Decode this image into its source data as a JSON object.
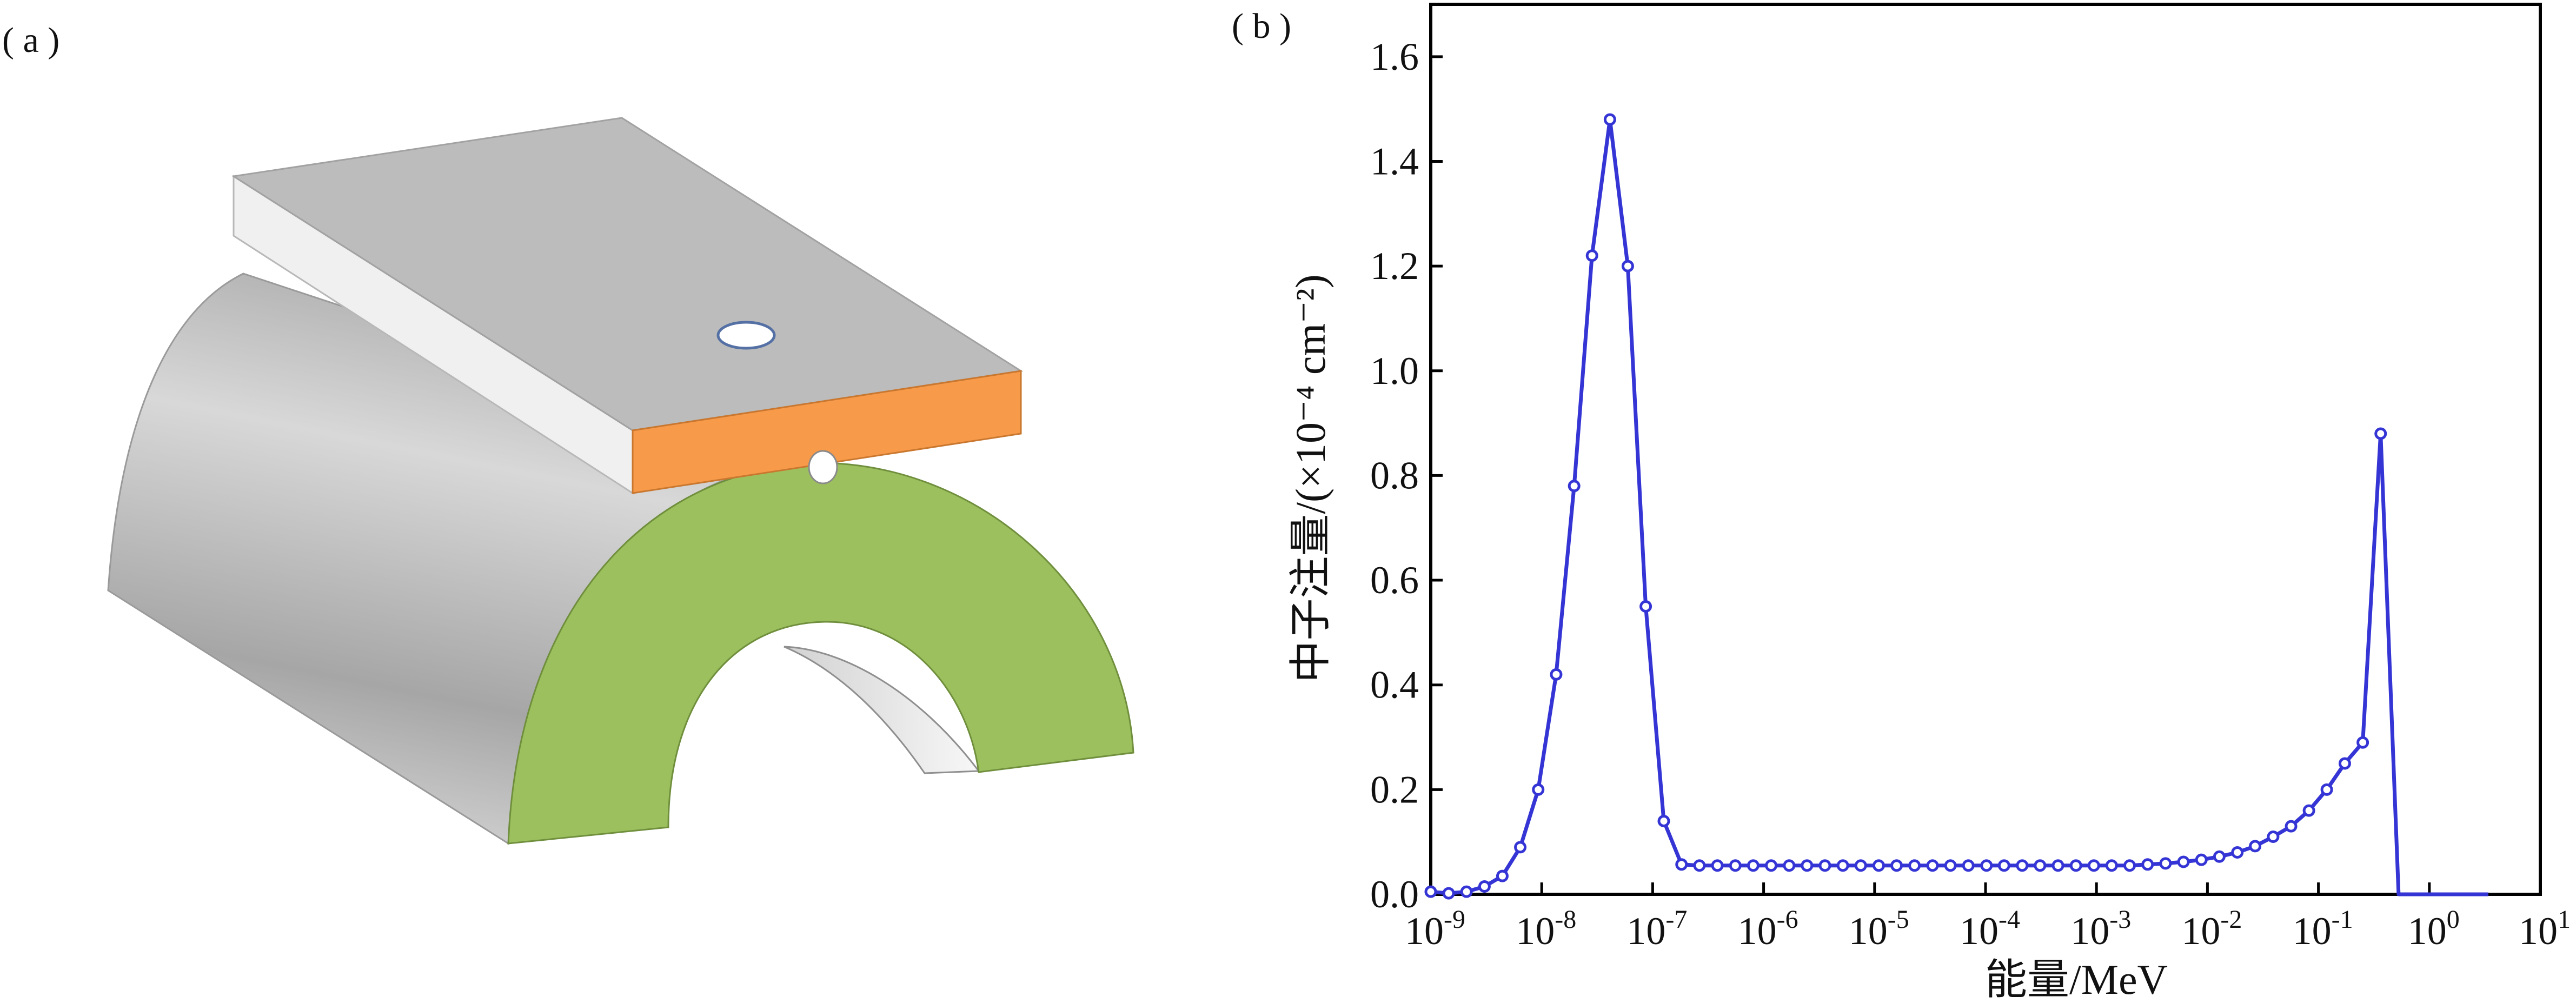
{
  "panel_a": {
    "label": "( a )",
    "colors": {
      "slab_top": "#bcbcbc",
      "slab_side": "#f0f0f0",
      "slab_front": "#f79a4a",
      "arch_face": "#9dc05e",
      "arch_body": "#b3b3b3",
      "hole": "#ffffff",
      "hole_stroke": "#5470a4"
    }
  },
  "panel_b": {
    "label": "( b )"
  },
  "chart_data": {
    "type": "line",
    "xlabel": "能量/MeV",
    "ylabel": "中子注量/(×10⁻⁴ cm⁻²)",
    "xscale": "log",
    "xlim": [
      1e-09,
      10
    ],
    "ylim": [
      0,
      1.7
    ],
    "x_ticks": [
      1e-09,
      1e-08,
      1e-07,
      1e-06,
      1e-05,
      0.0001,
      0.001,
      0.01,
      0.1,
      1,
      10
    ],
    "x_tick_labels": [
      {
        "base": "10",
        "exp": "-9"
      },
      {
        "base": "10",
        "exp": "-8"
      },
      {
        "base": "10",
        "exp": "-7"
      },
      {
        "base": "10",
        "exp": "-6"
      },
      {
        "base": "10",
        "exp": "-5"
      },
      {
        "base": "10",
        "exp": "-4"
      },
      {
        "base": "10",
        "exp": "-3"
      },
      {
        "base": "10",
        "exp": "-2"
      },
      {
        "base": "10",
        "exp": "-1"
      },
      {
        "base": "10",
        "exp": "0"
      },
      {
        "base": "10",
        "exp": "1"
      }
    ],
    "y_ticks": [
      0.0,
      0.2,
      0.4,
      0.6,
      0.8,
      1.0,
      1.2,
      1.4,
      1.6
    ],
    "y_tick_labels": [
      "0.0",
      "0.2",
      "0.4",
      "0.6",
      "0.8",
      "1.0",
      "1.2",
      "1.4",
      "1.6"
    ],
    "grid": false,
    "line_color": "#3535d6",
    "series": [
      {
        "x": [
          1e-09,
          1.45e-09,
          2.1e-09,
          3.05e-09,
          4.42e-09,
          6.41e-09,
          9.3e-09,
          1.35e-08,
          1.96e-08,
          2.84e-08,
          4.12e-08,
          5.97e-08,
          8.66e-08,
          1.26e-07,
          1.82e-07,
          2.64e-07,
          3.83e-07,
          5.56e-07,
          8.06e-07,
          1.17e-06,
          1.7e-06,
          2.46e-06,
          3.57e-06,
          5.18e-06,
          7.51e-06,
          1.09e-05,
          1.58e-05,
          2.29e-05,
          3.33e-05,
          4.83e-05,
          7e-05,
          0.000102,
          0.000147,
          0.000214,
          0.00031,
          0.00045,
          0.000653,
          0.000947,
          0.00137,
          0.00199,
          0.00289,
          0.00419,
          0.00608,
          0.00882,
          0.0128,
          0.0186,
          0.0269,
          0.0391,
          0.0567,
          0.0822,
          0.119,
          0.173,
          0.251,
          0.364,
          0.528,
          0.766,
          1.11,
          1.61,
          2.34,
          3.4
        ],
        "y": [
          0.005,
          0.002,
          0.005,
          0.015,
          0.035,
          0.09,
          0.2,
          0.42,
          0.78,
          1.22,
          1.48,
          1.2,
          0.55,
          0.14,
          0.057,
          0.055,
          0.055,
          0.055,
          0.055,
          0.055,
          0.055,
          0.055,
          0.055,
          0.055,
          0.055,
          0.055,
          0.055,
          0.055,
          0.055,
          0.055,
          0.055,
          0.055,
          0.055,
          0.055,
          0.055,
          0.055,
          0.055,
          0.055,
          0.055,
          0.055,
          0.057,
          0.059,
          0.062,
          0.066,
          0.072,
          0.08,
          0.092,
          0.11,
          0.13,
          0.16,
          0.2,
          0.25,
          0.29,
          0.88,
          0.0,
          0.0,
          0.0,
          0.0,
          0.0,
          0.0
        ]
      }
    ]
  }
}
